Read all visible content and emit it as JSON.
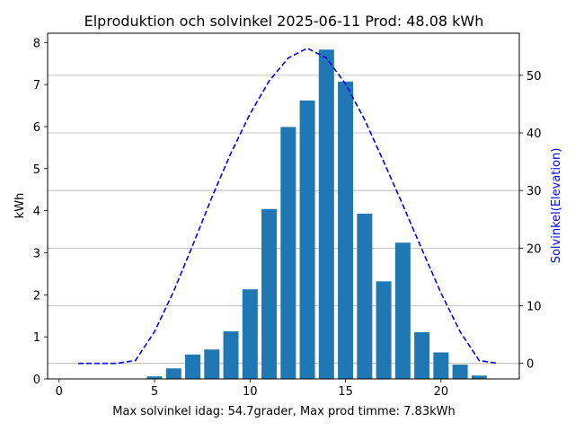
{
  "chart_data": {
    "type": "bar",
    "title": "Elproduktion och solvinkel 2025-06-11 Prod: 48.08 kWh",
    "xlabel": "Max solvinkel idag: 54.7grader, Max prod timme: 7.83kWh",
    "ylabel": "kWh",
    "y2label": "Solvinkel(Elevation)",
    "xlim": [
      -0.6,
      24.1
    ],
    "ylim": [
      0,
      8.22
    ],
    "y2lim": [
      -2.7,
      57.3
    ],
    "x_ticks": [
      0,
      5,
      10,
      15,
      20
    ],
    "y_ticks": [
      0,
      1,
      2,
      3,
      4,
      5,
      6,
      7,
      8
    ],
    "y2_ticks": [
      0,
      10,
      20,
      30,
      40,
      50
    ],
    "grid": "horizontal lines at right-axis ticks",
    "bar_color": "#1f77b4",
    "line_color": "#0000ff",
    "series": [
      {
        "type": "bar",
        "axis": "left",
        "x": [
          5,
          6,
          7,
          8,
          9,
          10,
          11,
          12,
          13,
          14,
          15,
          16,
          17,
          18,
          19,
          20,
          21,
          22
        ],
        "values": [
          0.06,
          0.25,
          0.58,
          0.7,
          1.13,
          2.13,
          4.04,
          5.99,
          6.62,
          7.83,
          7.07,
          3.93,
          2.32,
          3.24,
          1.11,
          0.63,
          0.34,
          0.08
        ]
      },
      {
        "type": "line",
        "style": "dashed",
        "axis": "right",
        "x": [
          1,
          2,
          3,
          4,
          5,
          6,
          7,
          8,
          9,
          10,
          11,
          12,
          13,
          14,
          15,
          16,
          17,
          18,
          19,
          20,
          21,
          22,
          23
        ],
        "values": [
          0,
          0,
          0,
          0.5,
          5.5,
          12.5,
          20.5,
          28.8,
          36.5,
          43.3,
          49.0,
          53.0,
          54.7,
          53.0,
          48.5,
          42.3,
          35.0,
          27.5,
          19.8,
          12.2,
          5.5,
          0.5,
          0
        ]
      }
    ]
  }
}
